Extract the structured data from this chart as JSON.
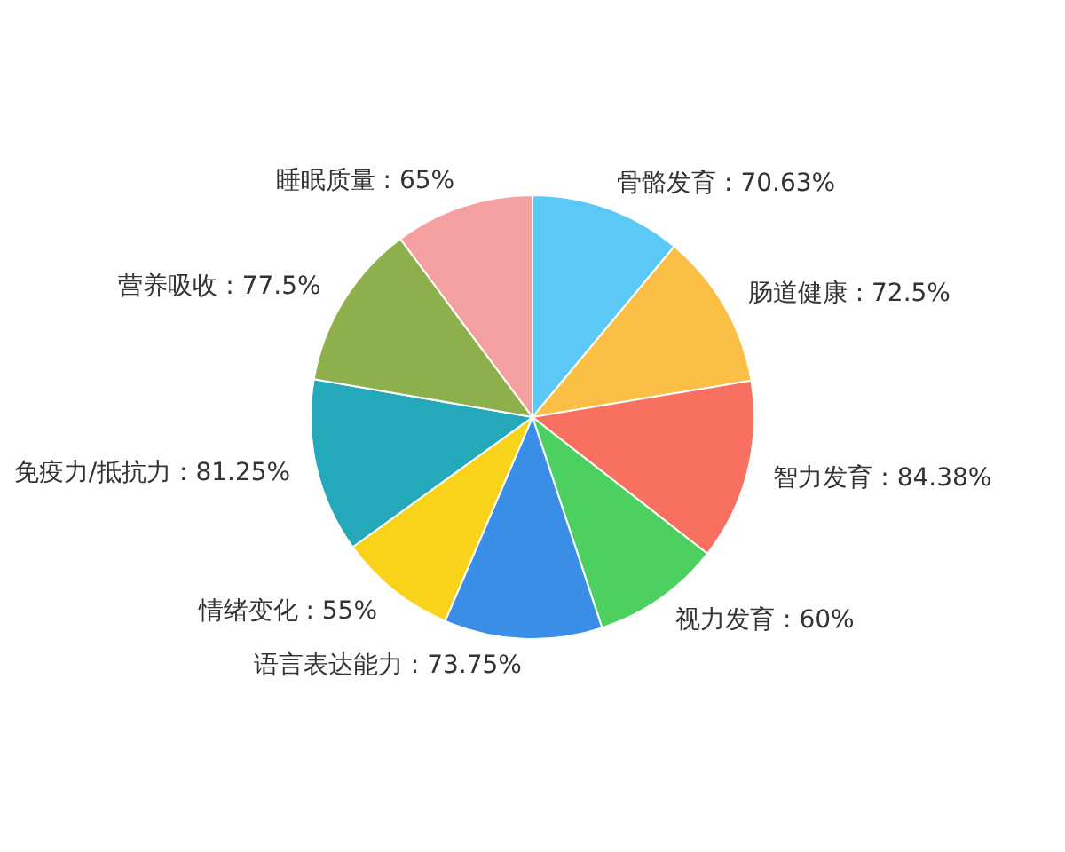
{
  "chart_data": {
    "type": "pie",
    "categories": [
      "骨骼发育",
      "肠道健康",
      "智力发育",
      "视力发育",
      "语言表达能力",
      "情绪变化",
      "免疫力/抵抗力",
      "营养吸收",
      "睡眠质量"
    ],
    "values": [
      70.63,
      72.5,
      84.38,
      60,
      73.75,
      55,
      81.25,
      77.5,
      65
    ],
    "value_labels": [
      "70.63%",
      "72.5%",
      "84.38%",
      "60%",
      "73.75%",
      "55%",
      "81.25%",
      "77.5%",
      "65%"
    ],
    "colors": [
      "#5bc8f5",
      "#fbbf45",
      "#f87060",
      "#4cd060",
      "#3a8ee8",
      "#f9d21a",
      "#23a9b9",
      "#8db04c",
      "#f4a0a0"
    ]
  }
}
